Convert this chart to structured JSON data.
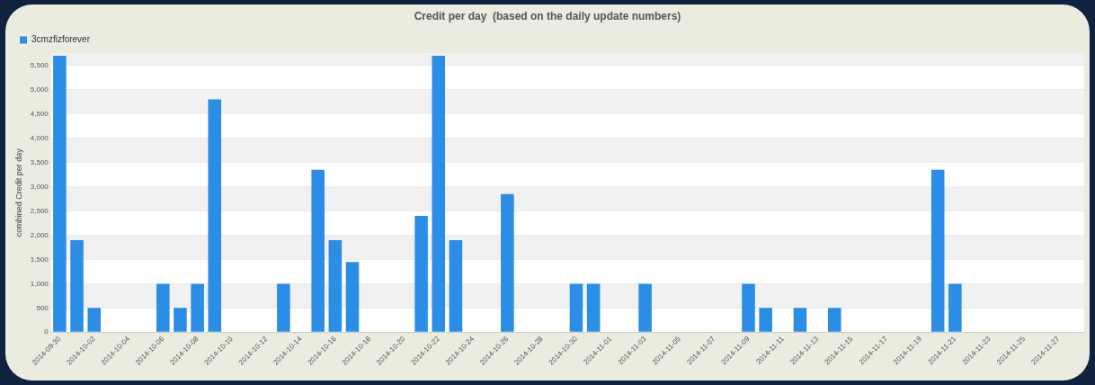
{
  "chart_data": {
    "type": "bar",
    "title": "Credit per day  (based on the daily update numbers)",
    "ylabel": "combined Credit per day",
    "categories": [
      "2014-09-30",
      null,
      "2014-10-02",
      null,
      "2014-10-04",
      null,
      "2014-10-06",
      null,
      "2014-10-08",
      null,
      "2014-10-10",
      null,
      "2014-10-12",
      null,
      "2014-10-14",
      null,
      "2014-10-16",
      null,
      "2014-10-18",
      null,
      "2014-10-20",
      null,
      "2014-10-22",
      null,
      "2014-10-24",
      null,
      "2014-10-26",
      null,
      "2014-10-28",
      null,
      "2014-10-30",
      null,
      "2014-11-01",
      null,
      "2014-11-03",
      null,
      "2014-11-05",
      null,
      "2014-11-07",
      null,
      "2014-11-09",
      null,
      "2014-11-11",
      null,
      "2014-11-13",
      null,
      "2014-11-15",
      null,
      "2014-11-17",
      null,
      "2014-11-19",
      null,
      "2014-11-21",
      null,
      "2014-11-23",
      null,
      "2014-11-25",
      null,
      "2014-11-27",
      null
    ],
    "series": [
      {
        "name": "3cmzfizforever",
        "color": "#2b8de6",
        "values": [
          5700,
          1900,
          500,
          0,
          0,
          0,
          1000,
          500,
          1000,
          4800,
          0,
          0,
          0,
          1000,
          0,
          3350,
          1900,
          1450,
          0,
          0,
          0,
          2400,
          5700,
          1900,
          0,
          0,
          2850,
          0,
          0,
          0,
          1000,
          1000,
          0,
          0,
          1000,
          0,
          0,
          0,
          0,
          0,
          1000,
          500,
          0,
          500,
          0,
          500,
          0,
          0,
          0,
          0,
          0,
          3350,
          1000,
          0,
          0,
          0,
          0,
          0,
          0,
          0
        ]
      }
    ],
    "ylim": [
      0,
      5750
    ],
    "yticks": [
      0,
      {
        "value": 500,
        "label": "500"
      },
      {
        "value": 1000,
        "label": "1,000"
      },
      {
        "value": 1500,
        "label": "1,500"
      },
      {
        "value": 2000,
        "label": "2,000"
      },
      {
        "value": 2500,
        "label": "2,500"
      },
      {
        "value": 3000,
        "label": "3,000"
      },
      {
        "value": 3500,
        "label": "3,500"
      },
      {
        "value": 4000,
        "label": "4,000"
      },
      {
        "value": 4500,
        "label": "4,500"
      },
      {
        "value": 5000,
        "label": "5,000"
      },
      {
        "value": 5500,
        "label": "5,500"
      }
    ],
    "grid": "y",
    "legend": "top left"
  }
}
